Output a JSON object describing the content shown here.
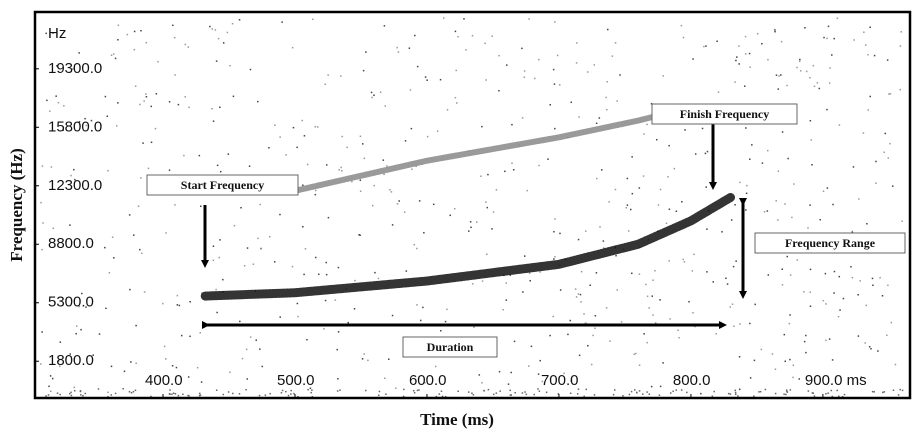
{
  "chart_data": {
    "type": "line",
    "x_label": "Time (ms)",
    "y_label": "Frequency (Hz)",
    "y_unit": "Hz",
    "x": [
      432,
      500,
      600,
      700,
      760,
      800,
      830
    ],
    "series": [
      {
        "color": "#111111",
        "values": [
          5700,
          5900,
          6600,
          7600,
          8800,
          10200,
          11600
        ]
      },
      {
        "color": "#888888",
        "values": [
          null,
          12000,
          13800,
          15200,
          16200,
          17000,
          null
        ]
      }
    ],
    "xlim": [
      303,
      966
    ],
    "ylim": [
      -400,
      22700
    ],
    "xticks": [
      {
        "value": 400,
        "label": "400.0"
      },
      {
        "value": 500,
        "label": "500.0"
      },
      {
        "value": 600,
        "label": "600.0"
      },
      {
        "value": 700,
        "label": "700.0"
      },
      {
        "value": 800,
        "label": "800.0"
      },
      {
        "value": 900,
        "label": "900.0 ms"
      }
    ],
    "yticks": [
      {
        "value": 1800,
        "label": "1800.0"
      },
      {
        "value": 5300,
        "label": "5300.0"
      },
      {
        "value": 8800,
        "label": "8800.0"
      },
      {
        "value": 12300,
        "label": "12300.0"
      },
      {
        "value": 15800,
        "label": "15800.0"
      },
      {
        "value": 19300,
        "label": "19300.0"
      }
    ],
    "annotations": [
      "Start Frequency",
      "Finish Frequency",
      "Frequency Range",
      "Duration"
    ]
  }
}
